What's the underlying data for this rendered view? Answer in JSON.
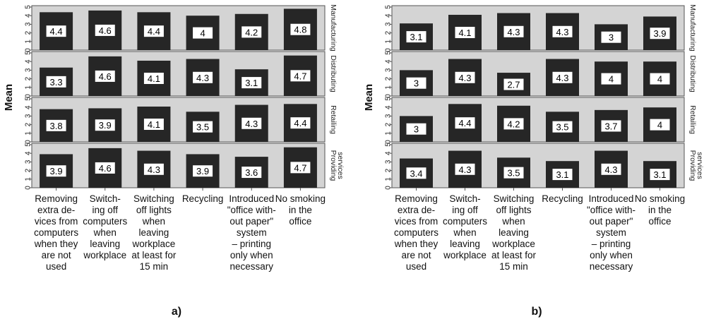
{
  "categories": [
    "Removing extra devices from computers when they are not used",
    "Switching off computers when leaving workplace",
    "Switching off lights when leaving workplace at least for 15 min",
    "Recycling",
    "Introduced \"office without paper\" system – printing only when necessary",
    "No smoking in the office"
  ],
  "category_label_lines": [
    [
      "Removing",
      "extra de-",
      "vices from",
      "computers",
      "when they",
      "are not",
      "used"
    ],
    [
      "Switch-",
      "ing off",
      "computers",
      "when",
      "leaving",
      "workplace"
    ],
    [
      "Switching",
      "off lights",
      "when",
      "leaving",
      "workplace",
      "at least for",
      "15 min"
    ],
    [
      "Recycling"
    ],
    [
      "Introduced",
      "\"office with-",
      "out paper\"",
      "system",
      "– printing",
      "only when",
      "necessary"
    ],
    [
      "No smoking",
      "in the",
      "office"
    ]
  ],
  "y_axis_label": "Mean",
  "y_ticks": [
    0,
    1,
    2,
    3,
    4,
    5
  ],
  "sector_strip_lines": {
    "Manufacturing": [
      "Manufacturing"
    ],
    "Distributing": [
      "Distributing"
    ],
    "Retailing": [
      "Retailing"
    ],
    "Providing services": [
      "Providing",
      "services"
    ]
  },
  "colors": {
    "panel_bg": "#d4d4d4",
    "bar": "#262626",
    "label_box": "#ffffff",
    "axis": "#555555"
  },
  "chart_data": [
    {
      "type": "bar",
      "panel_label": "a)",
      "ylabel": "Mean",
      "ylim": [
        0,
        5
      ],
      "grid": false,
      "facets": [
        {
          "name": "Manufacturing",
          "values": [
            4.4,
            4.6,
            4.4,
            4.0,
            4.2,
            4.8
          ]
        },
        {
          "name": "Distributing",
          "values": [
            3.3,
            4.6,
            4.1,
            4.3,
            3.1,
            4.7
          ]
        },
        {
          "name": "Retailing",
          "values": [
            3.8,
            3.9,
            4.1,
            3.5,
            4.3,
            4.4
          ]
        },
        {
          "name": "Providing services",
          "values": [
            3.9,
            4.6,
            4.3,
            3.9,
            3.6,
            4.7
          ]
        }
      ]
    },
    {
      "type": "bar",
      "panel_label": "b)",
      "ylabel": "Mean",
      "ylim": [
        0,
        5
      ],
      "grid": false,
      "facets": [
        {
          "name": "Manufacturing",
          "values": [
            3.1,
            4.1,
            4.3,
            4.3,
            3.0,
            3.9
          ]
        },
        {
          "name": "Distributing",
          "values": [
            3.0,
            4.3,
            2.7,
            4.3,
            4.0,
            4.0
          ]
        },
        {
          "name": "Retailing",
          "values": [
            3.0,
            4.4,
            4.2,
            3.5,
            3.7,
            4.0
          ]
        },
        {
          "name": "Providing services",
          "values": [
            3.4,
            4.3,
            3.5,
            3.1,
            4.3,
            3.1
          ]
        }
      ]
    }
  ]
}
